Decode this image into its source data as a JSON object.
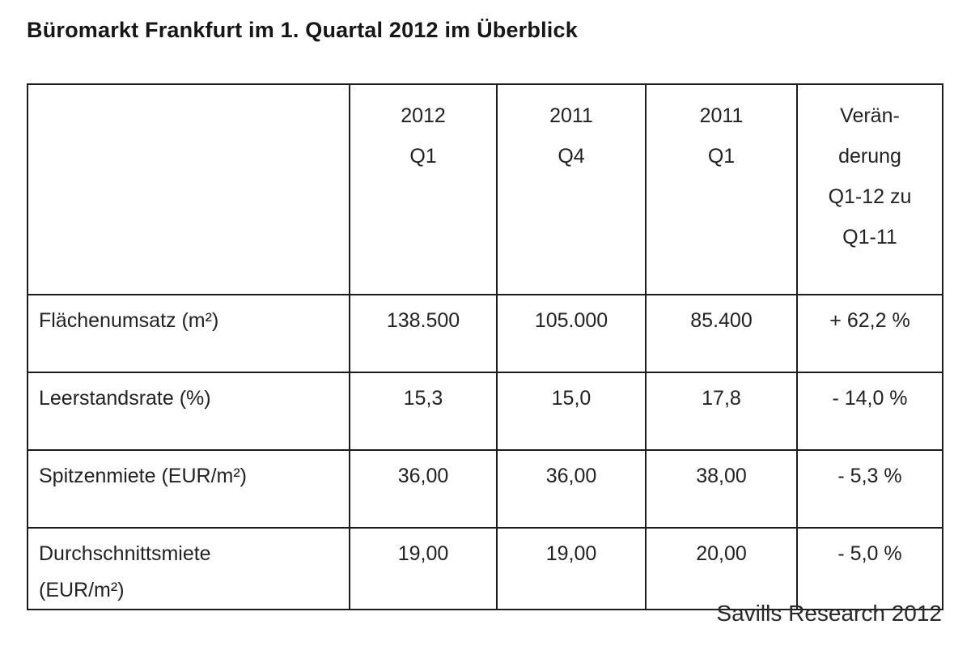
{
  "title": "Büromarkt Frankfurt im 1. Quartal 2012 im Überblick",
  "footer": {
    "source": "Savills Research 2012"
  },
  "colors": {
    "background": "#ffffff",
    "text": "#222222",
    "border": "#1c1c1c"
  },
  "table": {
    "columns": [
      {
        "id": "metric",
        "lines": []
      },
      {
        "id": "q1-2012",
        "lines": [
          "2012",
          "Q1"
        ]
      },
      {
        "id": "q4-2011",
        "lines": [
          "2011",
          "Q4"
        ]
      },
      {
        "id": "q1-2011",
        "lines": [
          "2011",
          "Q1"
        ]
      },
      {
        "id": "change",
        "lines": [
          "Verän-",
          "derung",
          "Q1-12 zu",
          "Q1-11"
        ]
      }
    ],
    "rows": [
      {
        "label_lines": [
          "Flächenumsatz (m²)"
        ],
        "values": [
          "138.500",
          "105.000",
          "85.400",
          "+ 62,2 %"
        ]
      },
      {
        "label_lines": [
          "Leerstandsrate (%)"
        ],
        "values": [
          "15,3",
          "15,0",
          "17,8",
          "- 14,0 %"
        ]
      },
      {
        "label_lines": [
          "Spitzenmiete (EUR/m²)"
        ],
        "values": [
          "36,00",
          "36,00",
          "38,00",
          "- 5,3 %"
        ]
      },
      {
        "label_lines": [
          "Durchschnittsmiete",
          "(EUR/m²)"
        ],
        "values": [
          "19,00",
          "19,00",
          "20,00",
          "- 5,0 %"
        ]
      }
    ]
  }
}
